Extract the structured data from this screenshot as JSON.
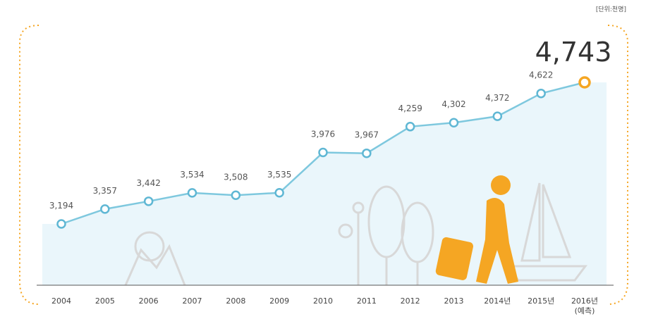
{
  "chart_data": {
    "type": "line",
    "unit_note": "[단위:천명]",
    "categories": [
      "2004",
      "2005",
      "2006",
      "2007",
      "2008",
      "2009",
      "2010",
      "2011",
      "2012",
      "2013",
      "2014년",
      "2015년",
      "2016년\n(예측)"
    ],
    "series": [
      {
        "color": "#7ec8de",
        "values": [
          3194,
          3357,
          3442,
          3534,
          3508,
          3535,
          3976,
          3967,
          4259,
          4302,
          4372,
          4622,
          4743
        ],
        "value_labels": [
          "3,194",
          "3,357",
          "3,442",
          "3,534",
          "3,508",
          "3,535",
          "3,976",
          "3,967",
          "4,259",
          "4,302",
          "4,372",
          "4,622",
          "4,743"
        ]
      }
    ],
    "highlight_color": "#f5a623"
  }
}
